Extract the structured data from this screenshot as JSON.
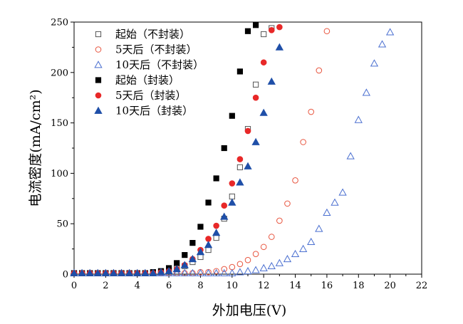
{
  "chart_data": {
    "type": "scatter",
    "xlabel": "外加电压(V)",
    "ylabel": "电流密度(mA/cm²)",
    "xlim": [
      0,
      22
    ],
    "ylim": [
      0,
      250
    ],
    "x_ticks": [
      "0",
      "2",
      "4",
      "6",
      "8",
      "10",
      "12",
      "14",
      "16",
      "18",
      "20",
      "22"
    ],
    "y_ticks": [
      "0",
      "50",
      "100",
      "150",
      "200",
      "250"
    ],
    "grid": false,
    "legend_position": "top-left",
    "series": [
      {
        "name": "起始（不封装）",
        "marker": "square",
        "filled": false,
        "color": "#555555",
        "x": [
          0,
          0.5,
          1,
          1.5,
          2,
          2.5,
          3,
          3.5,
          4,
          4.5,
          5,
          5.5,
          6,
          6.5,
          7,
          7.5,
          8,
          8.5,
          9,
          9.5,
          10,
          10.5,
          11,
          11.5,
          12,
          12.5
        ],
        "y": [
          1,
          1,
          1,
          1,
          1,
          1,
          1,
          1,
          1,
          1,
          2,
          3,
          4,
          6,
          8,
          12,
          17,
          24,
          36,
          55,
          77,
          106,
          144,
          188,
          238,
          244
        ]
      },
      {
        "name": "5天后（不封装）",
        "marker": "circle",
        "filled": false,
        "color": "#e8553f",
        "x": [
          0,
          0.5,
          1,
          1.5,
          2,
          2.5,
          3,
          3.5,
          4,
          4.5,
          5,
          5.5,
          6,
          6.5,
          7,
          7.5,
          8,
          8.5,
          9,
          9.5,
          10,
          10.5,
          11,
          11.5,
          12,
          12.5,
          13,
          13.5,
          14,
          14.5,
          15,
          15.5,
          16
        ],
        "y": [
          1,
          1,
          1,
          1,
          1,
          1,
          1,
          1,
          1,
          1,
          1,
          1,
          1,
          1,
          1,
          1,
          2,
          2,
          3,
          5,
          7,
          10,
          14,
          20,
          27,
          37,
          53,
          70,
          93,
          131,
          161,
          202,
          241
        ]
      },
      {
        "name": "10天后（不封装）",
        "marker": "triangle",
        "filled": false,
        "color": "#4a6fd0",
        "x": [
          0,
          0.5,
          1,
          1.5,
          2,
          2.5,
          3,
          3.5,
          4,
          4.5,
          5,
          5.5,
          6,
          6.5,
          7,
          7.5,
          8,
          8.5,
          9,
          9.5,
          10,
          10.5,
          11,
          11.5,
          12,
          12.5,
          13,
          13.5,
          14,
          14.5,
          15,
          15.5,
          16,
          16.5,
          17,
          17.5,
          18,
          18.5,
          19,
          19.5,
          20
        ],
        "y": [
          1,
          1,
          1,
          1,
          1,
          1,
          1,
          1,
          1,
          1,
          1,
          1,
          1,
          1,
          1,
          1,
          1,
          1,
          1,
          1,
          1,
          2,
          3,
          4,
          6,
          8,
          11,
          15,
          20,
          25,
          32,
          45,
          61,
          71,
          81,
          117,
          153,
          180,
          209,
          228,
          240
        ]
      },
      {
        "name": "起始（封装）",
        "marker": "square",
        "filled": true,
        "color": "#000000",
        "x": [
          0,
          0.5,
          1,
          1.5,
          2,
          2.5,
          3,
          3.5,
          4,
          4.5,
          5,
          5.5,
          6,
          6.5,
          7,
          7.5,
          8,
          8.5,
          9,
          9.5,
          10,
          10.5,
          11,
          11.5
        ],
        "y": [
          1,
          1,
          1,
          1,
          1,
          1,
          1,
          1,
          1,
          1,
          2,
          3,
          6,
          11,
          19,
          31,
          47,
          71,
          95,
          125,
          157,
          201,
          241,
          247
        ]
      },
      {
        "name": "5天后（封装）",
        "marker": "circle",
        "filled": true,
        "color": "#e82828",
        "x": [
          0,
          0.5,
          1,
          1.5,
          2,
          2.5,
          3,
          3.5,
          4,
          4.5,
          5,
          5.5,
          6,
          6.5,
          7,
          7.5,
          8,
          8.5,
          9,
          9.5,
          10,
          10.5,
          11,
          11.5,
          12,
          12.5,
          13
        ],
        "y": [
          1,
          1,
          1,
          1,
          1,
          1,
          1,
          1,
          1,
          1,
          1,
          2,
          3,
          5,
          9,
          15,
          24,
          35,
          48,
          68,
          90,
          114,
          142,
          175,
          210,
          242,
          245
        ]
      },
      {
        "name": "10天后（封装）",
        "marker": "triangle",
        "filled": true,
        "color": "#1f4fa8",
        "x": [
          0,
          0.5,
          1,
          1.5,
          2,
          2.5,
          3,
          3.5,
          4,
          4.5,
          5,
          5.5,
          6,
          6.5,
          7,
          7.5,
          8,
          8.5,
          9,
          9.5,
          10,
          10.5,
          11,
          11.5,
          12,
          12.5,
          13
        ],
        "y": [
          1,
          1,
          1,
          1,
          1,
          1,
          1,
          1,
          1,
          1,
          1,
          2,
          3,
          5,
          9,
          15,
          22,
          29,
          41,
          57,
          71,
          91,
          107,
          131,
          160,
          191,
          225
        ]
      }
    ]
  }
}
